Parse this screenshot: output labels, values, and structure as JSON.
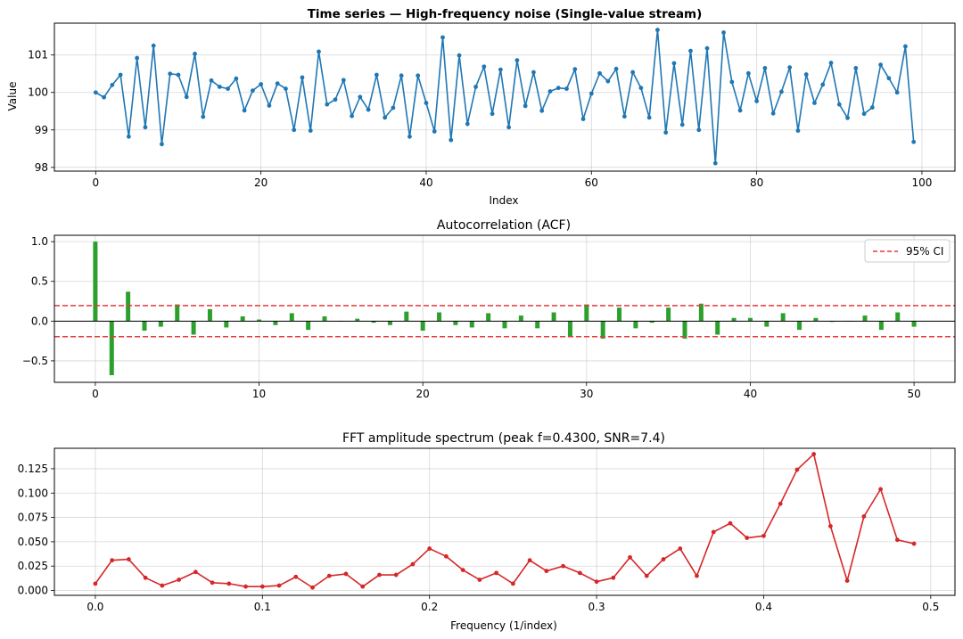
{
  "chart_data": [
    {
      "type": "line",
      "title": "Time series — High-frequency noise (Single-value stream)",
      "xlabel": "Index",
      "ylabel": "Value",
      "xlim": [
        -5,
        104
      ],
      "ylim": [
        97.9,
        101.85
      ],
      "xticks": [
        0,
        20,
        40,
        60,
        80,
        100
      ],
      "yticks": [
        98,
        99,
        100,
        101
      ],
      "grid": true,
      "color": "#1f77b4",
      "series": [
        {
          "x": [
            0,
            1,
            2,
            3,
            4,
            5,
            6,
            7,
            8,
            9,
            10,
            11,
            12,
            13,
            14,
            15,
            16,
            17,
            18,
            19,
            20,
            21,
            22,
            23,
            24,
            25,
            26,
            27,
            28,
            29,
            30,
            31,
            32,
            33,
            34,
            35,
            36,
            37,
            38,
            39,
            40,
            41,
            42,
            43,
            44,
            45,
            46,
            47,
            48,
            49,
            50,
            51,
            52,
            53,
            54,
            55,
            56,
            57,
            58,
            59,
            60,
            61,
            62,
            63,
            64,
            65,
            66,
            67,
            68,
            69,
            70,
            71,
            72,
            73,
            74,
            75,
            76,
            77,
            78,
            79,
            80,
            81,
            82,
            83,
            84,
            85,
            86,
            87,
            88,
            89,
            90,
            91,
            92,
            93,
            94,
            95,
            96,
            97,
            98,
            99
          ],
          "y": [
            100.0,
            99.87,
            100.2,
            100.47,
            98.82,
            100.92,
            99.07,
            101.25,
            98.62,
            100.5,
            100.47,
            99.88,
            101.03,
            99.35,
            100.32,
            100.15,
            100.1,
            100.37,
            99.52,
            100.05,
            100.22,
            99.65,
            100.24,
            100.1,
            99.0,
            100.4,
            98.98,
            101.09,
            99.68,
            99.81,
            100.33,
            99.37,
            99.88,
            99.54,
            100.47,
            99.33,
            99.59,
            100.45,
            98.82,
            100.45,
            99.72,
            98.96,
            101.47,
            98.73,
            100.99,
            99.16,
            100.15,
            100.69,
            99.43,
            100.61,
            99.07,
            100.86,
            99.64,
            100.54,
            99.51,
            100.03,
            100.12,
            100.1,
            100.62,
            99.29,
            99.97,
            100.51,
            100.3,
            100.63,
            99.36,
            100.54,
            100.12,
            99.33,
            101.67,
            98.93,
            100.78,
            99.14,
            101.11,
            99.0,
            101.18,
            98.11,
            101.6,
            100.28,
            99.52,
            100.51,
            99.77,
            100.65,
            99.44,
            100.02,
            100.67,
            98.98,
            100.48,
            99.72,
            100.21,
            100.79,
            99.68,
            99.32,
            100.65,
            99.43,
            99.6,
            100.74,
            100.38,
            100.0,
            101.23,
            98.68
          ]
        }
      ]
    },
    {
      "type": "bar",
      "title": "Autocorrelation (ACF)",
      "xlim": [
        -2.5,
        52.5
      ],
      "ylim": [
        -0.77,
        1.08
      ],
      "xticks": [
        0,
        10,
        20,
        30,
        40,
        50
      ],
      "yticks": [
        1.0,
        0.5,
        0.0,
        -0.5
      ],
      "grid": true,
      "color": "#2ca02c",
      "ci": 0.196,
      "ci_color": "#e8383b",
      "legend": {
        "label": "95% CI",
        "position": "upper-right"
      },
      "categories": [
        0,
        1,
        2,
        3,
        4,
        5,
        6,
        7,
        8,
        9,
        10,
        11,
        12,
        13,
        14,
        15,
        16,
        17,
        18,
        19,
        20,
        21,
        22,
        23,
        24,
        25,
        26,
        27,
        28,
        29,
        30,
        31,
        32,
        33,
        34,
        35,
        36,
        37,
        38,
        39,
        40,
        41,
        42,
        43,
        44,
        45,
        46,
        47,
        48,
        49,
        50
      ],
      "values": [
        1.0,
        -0.68,
        0.37,
        -0.12,
        -0.07,
        0.21,
        -0.17,
        0.15,
        -0.08,
        0.06,
        0.02,
        -0.05,
        0.1,
        -0.11,
        0.06,
        0.0,
        0.03,
        -0.02,
        -0.05,
        0.12,
        -0.12,
        0.11,
        -0.05,
        -0.08,
        0.1,
        -0.09,
        0.07,
        -0.09,
        0.11,
        -0.19,
        0.21,
        -0.22,
        0.17,
        -0.09,
        -0.02,
        0.17,
        -0.22,
        0.22,
        -0.17,
        0.04,
        0.04,
        -0.07,
        0.1,
        -0.11,
        0.04,
        -0.01,
        0.0,
        0.07,
        -0.11,
        0.11,
        -0.07
      ]
    },
    {
      "type": "line",
      "title": "FFT amplitude spectrum (peak f=0.4300, SNR=7.4)",
      "xlabel": "Frequency (1/index)",
      "xlim": [
        -0.0245,
        0.5145
      ],
      "ylim": [
        -0.005,
        0.146
      ],
      "xticks": [
        0.0,
        0.1,
        0.2,
        0.3,
        0.4,
        0.5
      ],
      "yticks": [
        0.0,
        0.025,
        0.05,
        0.075,
        0.1,
        0.125
      ],
      "grid": true,
      "color": "#d62728",
      "series": [
        {
          "x": [
            0.0,
            0.01,
            0.02,
            0.03,
            0.04,
            0.05,
            0.06,
            0.07,
            0.08,
            0.09,
            0.1,
            0.11,
            0.12,
            0.13,
            0.14,
            0.15,
            0.16,
            0.17,
            0.18,
            0.19,
            0.2,
            0.21,
            0.22,
            0.23,
            0.24,
            0.25,
            0.26,
            0.27,
            0.28,
            0.29,
            0.3,
            0.31,
            0.32,
            0.33,
            0.34,
            0.35,
            0.36,
            0.37,
            0.38,
            0.39,
            0.4,
            0.41,
            0.42,
            0.43,
            0.44,
            0.45,
            0.46,
            0.47,
            0.48,
            0.49
          ],
          "y": [
            0.007,
            0.031,
            0.032,
            0.013,
            0.005,
            0.011,
            0.019,
            0.008,
            0.007,
            0.004,
            0.004,
            0.005,
            0.014,
            0.003,
            0.015,
            0.017,
            0.004,
            0.016,
            0.016,
            0.027,
            0.043,
            0.035,
            0.021,
            0.011,
            0.018,
            0.007,
            0.031,
            0.02,
            0.025,
            0.018,
            0.009,
            0.013,
            0.034,
            0.015,
            0.032,
            0.043,
            0.015,
            0.06,
            0.069,
            0.054,
            0.056,
            0.089,
            0.124,
            0.14,
            0.066,
            0.01,
            0.076,
            0.104,
            0.052,
            0.048
          ]
        }
      ]
    }
  ]
}
